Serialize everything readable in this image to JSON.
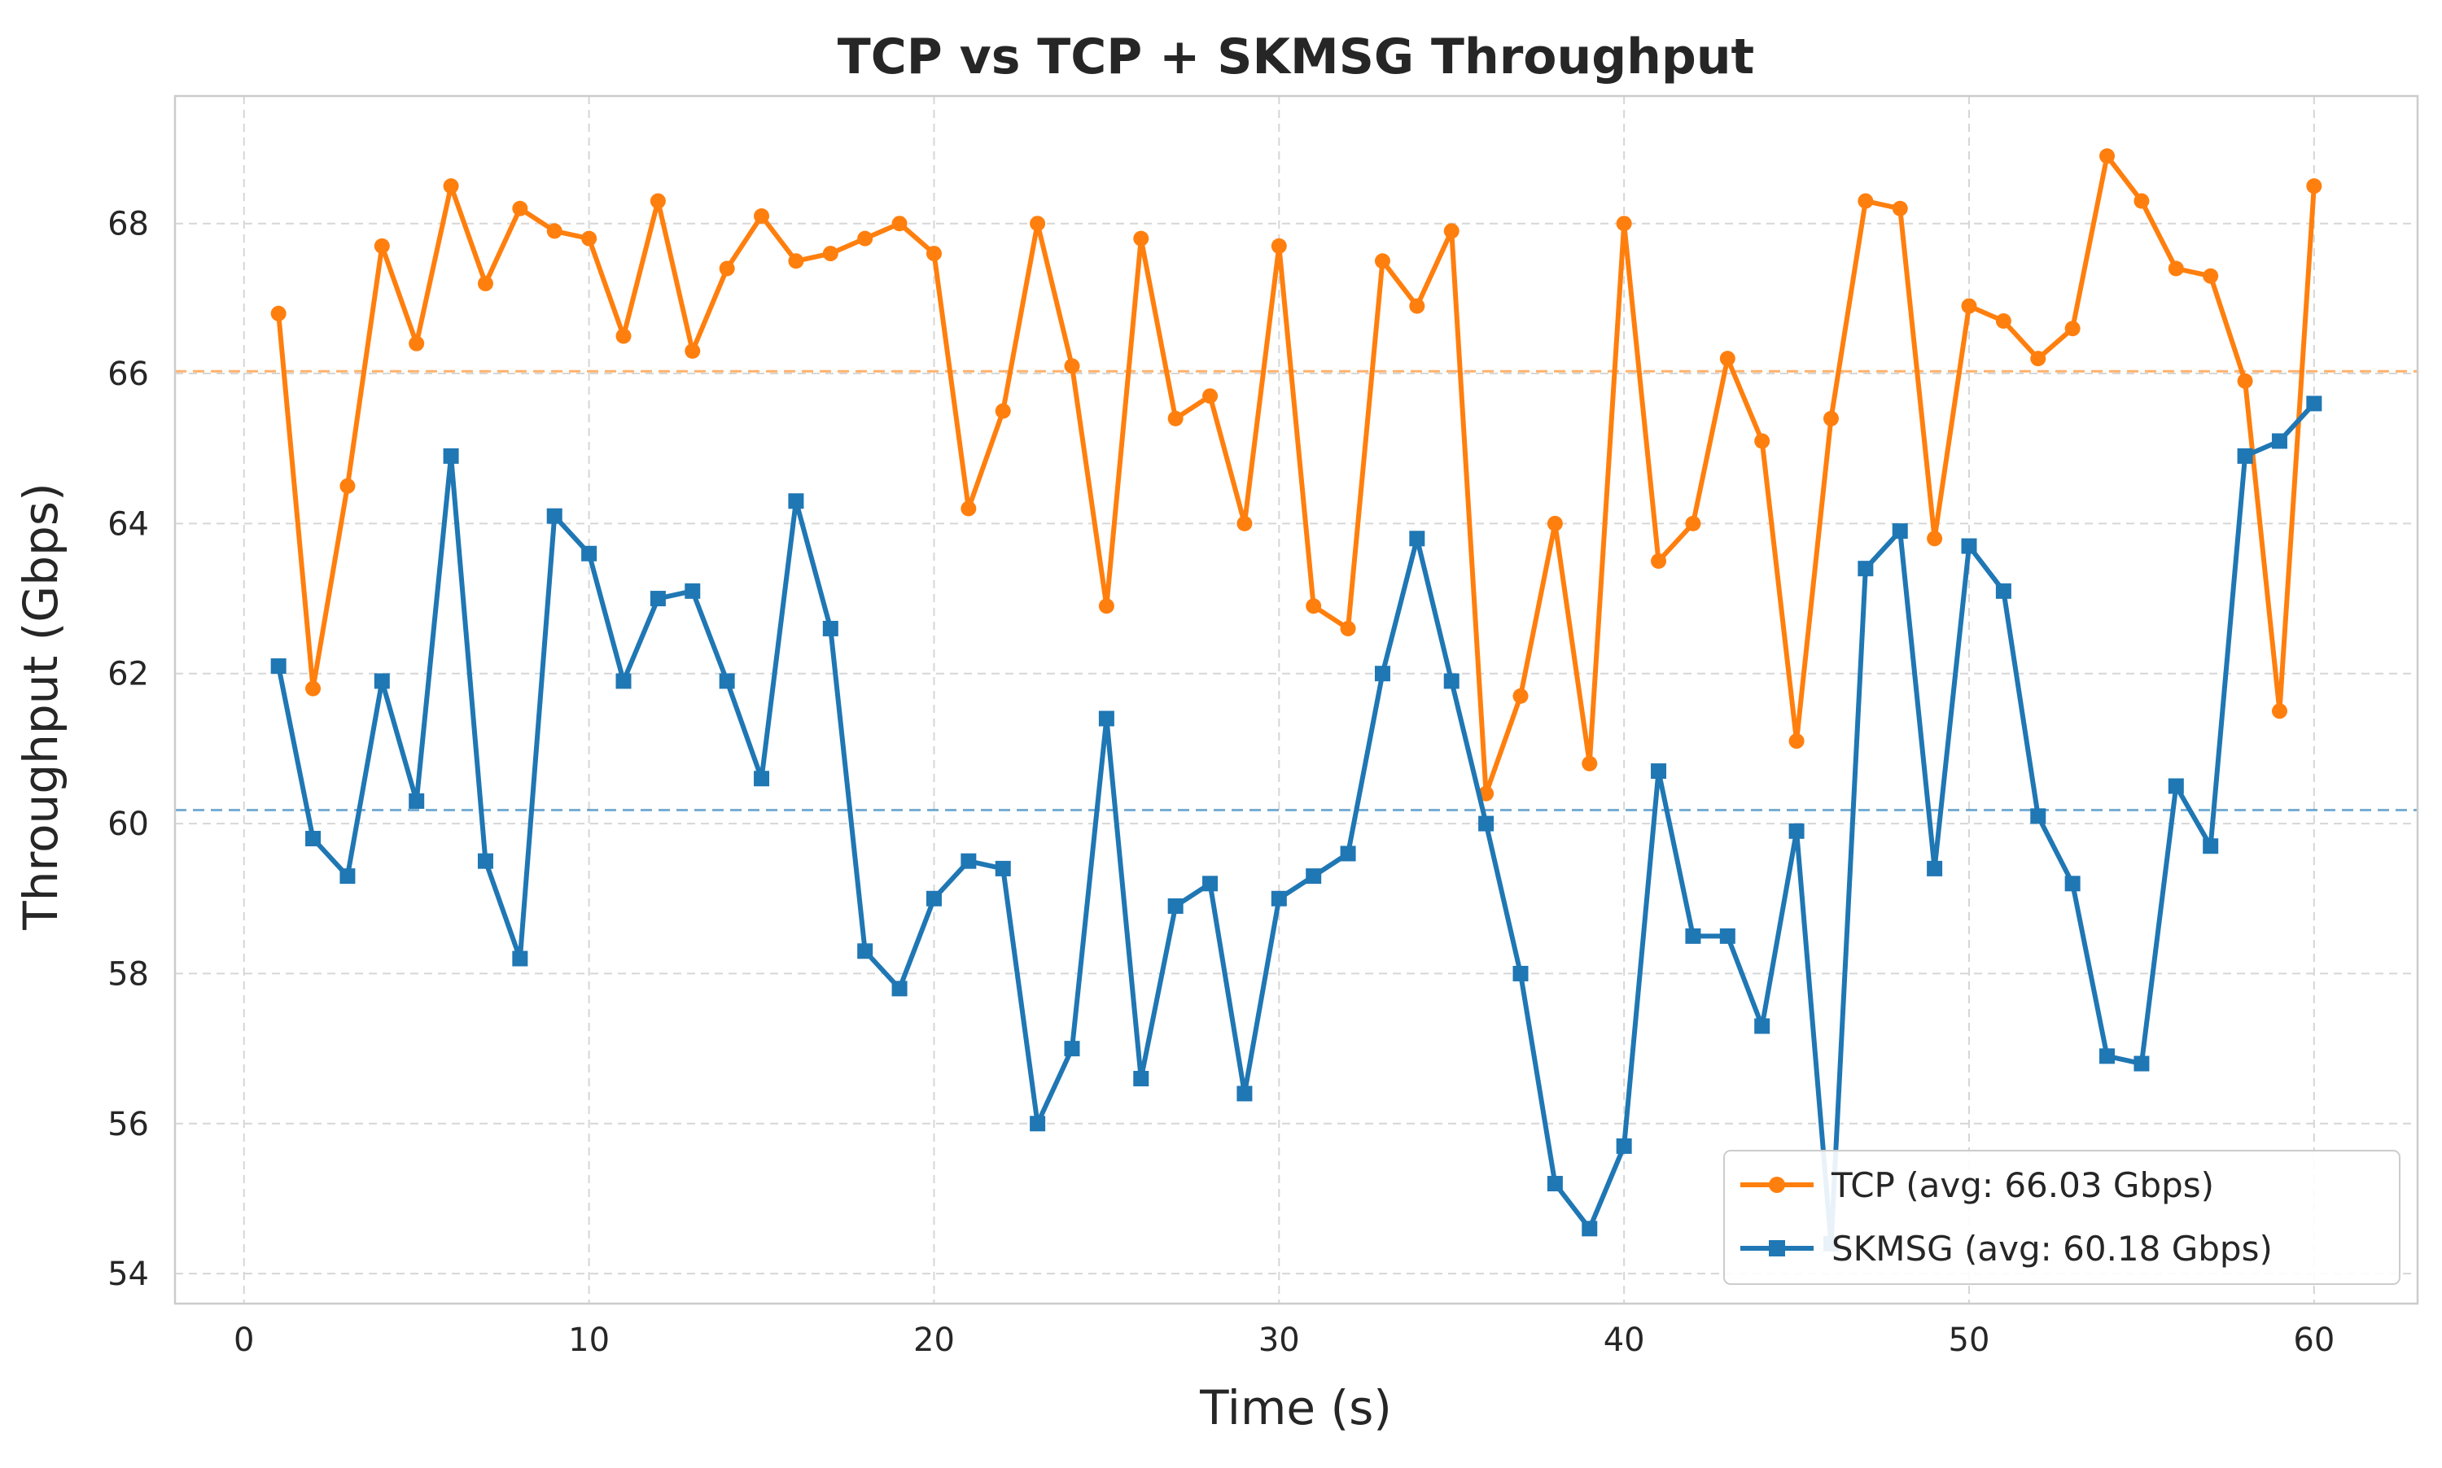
{
  "chart_data": {
    "type": "line",
    "title": "TCP vs TCP + SKMSG Throughput",
    "xlabel": "Time (s)",
    "ylabel": "Throughput (Gbps)",
    "xlim": [
      -2,
      63
    ],
    "ylim": [
      53.6,
      69.7
    ],
    "xticks": [
      0,
      10,
      20,
      30,
      40,
      50,
      60
    ],
    "yticks": [
      54,
      56,
      58,
      60,
      62,
      64,
      66,
      68
    ],
    "grid": true,
    "legend_position": "lower-right",
    "x": [
      1,
      2,
      3,
      4,
      5,
      6,
      7,
      8,
      9,
      10,
      11,
      12,
      13,
      14,
      15,
      16,
      17,
      18,
      19,
      20,
      21,
      22,
      23,
      24,
      25,
      26,
      27,
      28,
      29,
      30,
      31,
      32,
      33,
      34,
      35,
      36,
      37,
      38,
      39,
      40,
      41,
      42,
      43,
      44,
      45,
      46,
      47,
      48,
      49,
      50,
      51,
      52,
      53,
      54,
      55,
      56,
      57,
      58,
      59,
      60
    ],
    "series": [
      {
        "name": "TCP (avg: 66.03 Gbps)",
        "color": "#ff7f0e",
        "marker": "circle",
        "average": 66.03,
        "values": [
          66.8,
          61.8,
          64.5,
          67.7,
          66.4,
          68.5,
          67.2,
          68.2,
          67.9,
          67.8,
          66.5,
          68.3,
          66.3,
          67.4,
          68.1,
          67.5,
          67.6,
          67.8,
          68.0,
          67.6,
          64.2,
          65.5,
          68.0,
          66.1,
          62.9,
          67.8,
          65.4,
          65.7,
          64.0,
          67.7,
          62.9,
          62.6,
          67.5,
          66.9,
          67.9,
          60.4,
          61.7,
          64.0,
          60.8,
          68.0,
          63.5,
          64.0,
          66.2,
          65.1,
          61.1,
          65.4,
          68.3,
          68.2,
          63.8,
          66.9,
          66.7,
          66.2,
          66.6,
          68.9,
          68.3,
          67.4,
          67.3,
          65.9,
          61.5,
          68.5
        ]
      },
      {
        "name": "SKMSG (avg: 60.18 Gbps)",
        "color": "#1f77b4",
        "marker": "square",
        "average": 60.18,
        "values": [
          62.1,
          59.8,
          59.3,
          61.9,
          60.3,
          64.9,
          59.5,
          58.2,
          64.1,
          63.6,
          61.9,
          63.0,
          63.1,
          61.9,
          60.6,
          64.3,
          62.6,
          58.3,
          57.8,
          59.0,
          59.5,
          59.4,
          56.0,
          57.0,
          61.4,
          56.6,
          58.9,
          59.2,
          56.4,
          59.0,
          59.3,
          59.6,
          62.0,
          63.8,
          61.9,
          60.0,
          58.0,
          55.2,
          54.6,
          55.7,
          60.7,
          58.5,
          58.5,
          57.3,
          59.9,
          54.4,
          63.4,
          63.9,
          59.4,
          63.7,
          63.1,
          60.1,
          59.2,
          56.9,
          56.8,
          60.5,
          59.7,
          64.9,
          65.1,
          65.6
        ]
      }
    ]
  }
}
